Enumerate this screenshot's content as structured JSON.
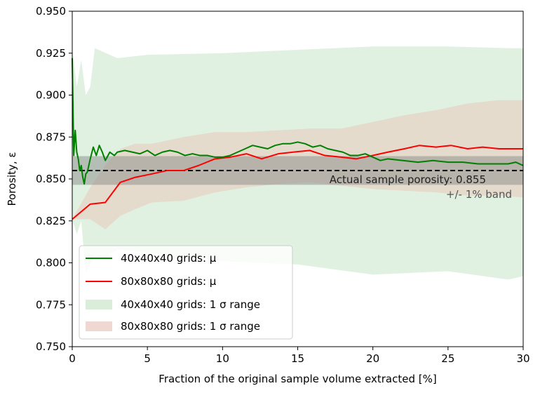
{
  "chart_data": {
    "type": "line",
    "xlabel": "Fraction of the original sample volume extracted  [%]",
    "ylabel": "Porosity, ε",
    "xlim": [
      0,
      30
    ],
    "ylim": [
      0.75,
      0.95
    ],
    "xticks": [
      0,
      5,
      10,
      15,
      20,
      25,
      30
    ],
    "yticks": [
      0.75,
      0.775,
      0.8,
      0.825,
      0.85,
      0.875,
      0.9,
      0.925,
      0.95
    ],
    "xtick_labels": [
      "0",
      "5",
      "10",
      "15",
      "20",
      "25",
      "30"
    ],
    "ytick_labels": [
      "0.750",
      "0.775",
      "0.800",
      "0.825",
      "0.850",
      "0.875",
      "0.900",
      "0.925",
      "0.950"
    ],
    "grid": false,
    "legend_position": "lower-left",
    "reference": {
      "value": 0.855,
      "band_low": 0.8465,
      "band_high": 0.8636,
      "label": "Actual sample porosity: 0.855",
      "band_label": "+/- 1% band",
      "color": "#000000",
      "band_color": "#808080"
    },
    "series": [
      {
        "name": "40x40x40 grids: μ",
        "kind": "line",
        "color": "#008000",
        "x": [
          0,
          0.1,
          0.2,
          0.3,
          0.4,
          0.5,
          0.6,
          0.7,
          0.8,
          0.9,
          1.0,
          1.2,
          1.4,
          1.6,
          1.8,
          2.0,
          2.2,
          2.5,
          2.8,
          3.0,
          3.5,
          4.0,
          4.5,
          5.0,
          5.5,
          6.0,
          6.5,
          7.0,
          7.5,
          8.0,
          8.5,
          9.0,
          9.5,
          10.0,
          10.5,
          11.0,
          11.5,
          12.0,
          12.5,
          13.0,
          13.5,
          14.0,
          14.5,
          15.0,
          15.5,
          16.0,
          16.5,
          17.0,
          17.5,
          18.0,
          18.5,
          19.0,
          19.5,
          20.0,
          20.5,
          21.0,
          22.0,
          23.0,
          24.0,
          25.0,
          26.0,
          27.0,
          28.0,
          29.0,
          29.5,
          30.0
        ],
        "y": [
          0.922,
          0.864,
          0.879,
          0.866,
          0.862,
          0.855,
          0.858,
          0.851,
          0.847,
          0.853,
          0.854,
          0.862,
          0.869,
          0.864,
          0.87,
          0.866,
          0.861,
          0.866,
          0.864,
          0.866,
          0.867,
          0.866,
          0.865,
          0.867,
          0.864,
          0.866,
          0.867,
          0.866,
          0.864,
          0.865,
          0.864,
          0.864,
          0.863,
          0.863,
          0.864,
          0.866,
          0.868,
          0.87,
          0.869,
          0.868,
          0.87,
          0.871,
          0.871,
          0.872,
          0.871,
          0.869,
          0.87,
          0.868,
          0.867,
          0.866,
          0.864,
          0.864,
          0.865,
          0.863,
          0.861,
          0.862,
          0.861,
          0.86,
          0.861,
          0.86,
          0.86,
          0.859,
          0.859,
          0.859,
          0.86,
          0.858
        ]
      },
      {
        "name": "80x80x80 grids: μ",
        "kind": "line",
        "color": "#ff0000",
        "x": [
          0,
          1.2,
          2.2,
          3.2,
          4.2,
          5.3,
          6.3,
          7.4,
          8.4,
          9.5,
          10.5,
          11.6,
          12.6,
          13.7,
          14.7,
          15.8,
          16.8,
          17.9,
          18.9,
          20.0,
          21.0,
          22.1,
          23.1,
          24.2,
          25.2,
          26.3,
          27.3,
          28.4,
          29.4,
          30.0
        ],
        "y": [
          0.826,
          0.835,
          0.836,
          0.848,
          0.851,
          0.853,
          0.855,
          0.855,
          0.858,
          0.862,
          0.863,
          0.865,
          0.862,
          0.865,
          0.866,
          0.867,
          0.864,
          0.863,
          0.862,
          0.864,
          0.866,
          0.868,
          0.87,
          0.869,
          0.87,
          0.868,
          0.869,
          0.868,
          0.868,
          0.868
        ]
      },
      {
        "name": "40x40x40 grids: 1 σ range",
        "kind": "band",
        "color": "#c9e6c9",
        "x": [
          0,
          0.3,
          0.6,
          0.9,
          1.2,
          1.5,
          2.0,
          3.0,
          5.0,
          10.0,
          15.0,
          20.0,
          25.0,
          29.0,
          30.0
        ],
        "upper": [
          0.928,
          0.905,
          0.921,
          0.9,
          0.905,
          0.928,
          0.926,
          0.922,
          0.924,
          0.925,
          0.927,
          0.929,
          0.929,
          0.928,
          0.928
        ],
        "lower": [
          0.826,
          0.817,
          0.825,
          0.794,
          0.799,
          0.805,
          0.802,
          0.808,
          0.806,
          0.801,
          0.799,
          0.793,
          0.795,
          0.79,
          0.792
        ]
      },
      {
        "name": "80x80x80 grids: 1 σ range",
        "kind": "band",
        "color": "#e8c8bd",
        "x": [
          0,
          1.2,
          2.2,
          3.2,
          4.2,
          5.3,
          7.4,
          9.5,
          11.6,
          13.7,
          15.8,
          17.9,
          20.0,
          22.1,
          24.2,
          26.3,
          28.4,
          30.0
        ],
        "upper": [
          0.826,
          0.845,
          0.858,
          0.868,
          0.871,
          0.871,
          0.875,
          0.878,
          0.878,
          0.879,
          0.88,
          0.88,
          0.884,
          0.888,
          0.891,
          0.895,
          0.897,
          0.897
        ],
        "lower": [
          0.826,
          0.826,
          0.82,
          0.828,
          0.832,
          0.836,
          0.837,
          0.842,
          0.845,
          0.847,
          0.848,
          0.846,
          0.844,
          0.843,
          0.842,
          0.84,
          0.84,
          0.839
        ]
      }
    ]
  }
}
